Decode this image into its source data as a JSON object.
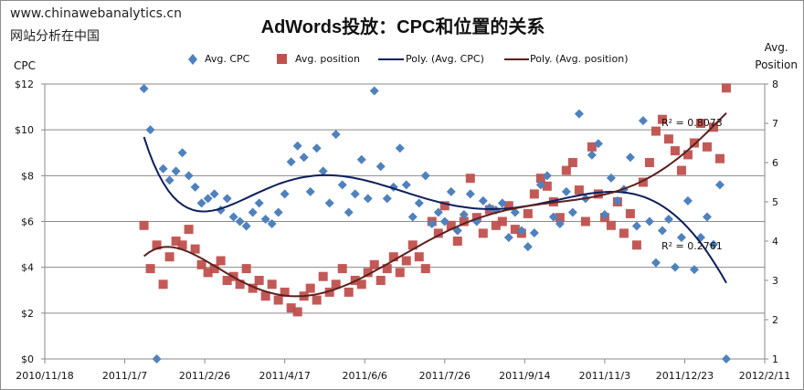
{
  "header": {
    "site": "www.chinawebanalytics.cn",
    "subtitle": "网站分析在中国"
  },
  "chart_data": {
    "type": "scatter",
    "title": "AdWords投放：CPC和位置的关系",
    "ylabel": "CPC",
    "y2label_lines": [
      "Avg.",
      "Position"
    ],
    "ylim": [
      0,
      12
    ],
    "y2lim": [
      1,
      8
    ],
    "xlim": [
      "2010/11/18",
      "2012/2/11"
    ],
    "x_ticks": [
      "2010/11/18",
      "2011/1/7",
      "2011/2/26",
      "2011/4/17",
      "2011/6/6",
      "2011/7/26",
      "2011/9/14",
      "2011/11/3",
      "2011/12/23",
      "2012/2/11"
    ],
    "y_ticks": [
      "$0",
      "$2",
      "$4",
      "$6",
      "$8",
      "$10",
      "$12"
    ],
    "y2_ticks": [
      "1",
      "2",
      "3",
      "4",
      "5",
      "6",
      "7",
      "8"
    ],
    "grid": true,
    "legend_position": "top",
    "legend": [
      "Avg. CPC",
      "Avg. position",
      "Poly. (Avg. CPC)",
      "Poly. (Avg. position)"
    ],
    "colors": {
      "cpc": "#4F81BD",
      "position": "#C0504D",
      "cpc_trend": "#0B1F5C",
      "position_trend": "#5C1F1F",
      "grid": "#8A8A8A"
    },
    "x": [
      "2011/1/19",
      "2011/1/23",
      "2011/1/27",
      "2011/1/31",
      "2011/2/4",
      "2011/2/8",
      "2011/2/12",
      "2011/2/16",
      "2011/2/20",
      "2011/2/24",
      "2011/2/28",
      "2011/3/4",
      "2011/3/8",
      "2011/3/12",
      "2011/3/16",
      "2011/3/20",
      "2011/3/24",
      "2011/3/28",
      "2011/4/1",
      "2011/4/5",
      "2011/4/9",
      "2011/4/13",
      "2011/4/17",
      "2011/4/21",
      "2011/4/25",
      "2011/4/29",
      "2011/5/3",
      "2011/5/7",
      "2011/5/11",
      "2011/5/15",
      "2011/5/19",
      "2011/5/23",
      "2011/5/27",
      "2011/5/31",
      "2011/6/4",
      "2011/6/8",
      "2011/6/12",
      "2011/6/16",
      "2011/6/20",
      "2011/6/24",
      "2011/6/28",
      "2011/7/2",
      "2011/7/6",
      "2011/7/10",
      "2011/7/14",
      "2011/7/18",
      "2011/7/22",
      "2011/7/26",
      "2011/7/30",
      "2011/8/3",
      "2011/8/7",
      "2011/8/11",
      "2011/8/15",
      "2011/8/19",
      "2011/8/23",
      "2011/8/27",
      "2011/8/31",
      "2011/9/4",
      "2011/9/8",
      "2011/9/12",
      "2011/9/16",
      "2011/9/20",
      "2011/9/24",
      "2011/9/28",
      "2011/10/2",
      "2011/10/6",
      "2011/10/10",
      "2011/10/14",
      "2011/10/18",
      "2011/10/22",
      "2011/10/26",
      "2011/10/30",
      "2011/11/3",
      "2011/11/7",
      "2011/11/11",
      "2011/11/15",
      "2011/11/19",
      "2011/11/23",
      "2011/11/27",
      "2011/12/1",
      "2011/12/5",
      "2011/12/9",
      "2011/12/13",
      "2011/12/17",
      "2011/12/21",
      "2011/12/25",
      "2011/12/29",
      "2012/1/2",
      "2012/1/6",
      "2012/1/10",
      "2012/1/14",
      "2012/1/18"
    ],
    "series": [
      {
        "name": "Avg. CPC",
        "axis": "left",
        "values": [
          11.8,
          10.0,
          0,
          8.3,
          7.8,
          8.2,
          9.0,
          8.0,
          7.5,
          6.8,
          7.0,
          7.2,
          6.5,
          7.0,
          6.2,
          6.0,
          5.8,
          6.4,
          6.8,
          6.1,
          5.9,
          6.4,
          7.2,
          8.6,
          9.3,
          8.8,
          7.3,
          9.2,
          8.2,
          6.8,
          9.8,
          7.6,
          6.4,
          7.2,
          8.7,
          7.0,
          11.7,
          8.4,
          7.0,
          7.5,
          9.2,
          7.6,
          6.2,
          6.8,
          8.0,
          5.9,
          6.4,
          6.0,
          7.3,
          5.6,
          6.3,
          7.2,
          6.0,
          6.9,
          6.6,
          6.5,
          6.8,
          5.3,
          6.4,
          5.6,
          4.9,
          5.5,
          7.6,
          8.0,
          6.2,
          5.9,
          7.3,
          6.4,
          10.7,
          7.0,
          8.9,
          9.4,
          6.3,
          7.9,
          6.9,
          7.4,
          8.8,
          5.8,
          10.4,
          6.0,
          4.2,
          5.6,
          6.1,
          4.0,
          5.3,
          6.9,
          3.9,
          5.3,
          6.2,
          5.0,
          7.6,
          0
        ]
      },
      {
        "name": "Avg. position",
        "axis": "right",
        "values": [
          4.4,
          3.3,
          3.9,
          2.9,
          3.6,
          4.0,
          3.9,
          4.3,
          3.8,
          3.4,
          3.2,
          3.3,
          3.5,
          3.0,
          3.1,
          2.9,
          3.3,
          2.8,
          3.0,
          2.6,
          2.9,
          2.5,
          2.7,
          2.3,
          2.2,
          2.6,
          2.8,
          2.5,
          3.1,
          2.7,
          2.9,
          3.3,
          2.7,
          3.0,
          2.9,
          3.2,
          3.4,
          3.0,
          3.3,
          3.6,
          3.2,
          3.5,
          3.9,
          3.6,
          3.3,
          4.5,
          4.2,
          4.9,
          4.4,
          4.0,
          4.5,
          5.6,
          4.6,
          4.2,
          4.8,
          4.4,
          4.5,
          4.9,
          4.3,
          4.2,
          4.7,
          5.2,
          5.6,
          5.4,
          5.0,
          4.6,
          5.8,
          6.0,
          5.3,
          4.5,
          6.4,
          5.2,
          4.6,
          4.4,
          5.0,
          4.2,
          4.7,
          3.9,
          5.5,
          6.0,
          6.8,
          7.1,
          6.6,
          6.3,
          5.8,
          6.2,
          6.5,
          7.0,
          6.4,
          6.9,
          6.1,
          7.9
        ]
      }
    ],
    "annotations": [
      {
        "text": "R² = 0.8073",
        "series": "Poly. (Avg. position)"
      },
      {
        "text": "R² = 0.2761",
        "series": "Poly. (Avg. CPC)"
      }
    ]
  }
}
